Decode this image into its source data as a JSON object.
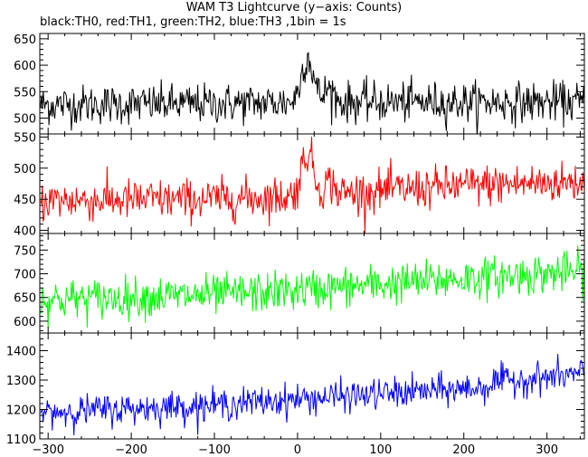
{
  "chart_data": {
    "type": "line",
    "title": "WAM T3 Lightcurve (y−axis: Counts)",
    "subtitle": "black:TH0, red:TH1, green:TH2, blue:TH3 ,1bin = 1s",
    "xlim": [
      -310,
      345
    ],
    "x_ticks": [
      -300,
      -200,
      -100,
      0,
      100,
      200,
      300
    ],
    "x_tick_labels": [
      "−300",
      "−200",
      "−100",
      "0",
      "100",
      "200",
      "300"
    ],
    "bin_seconds": 1,
    "grid": false,
    "panels": [
      {
        "channel": "TH0",
        "color": "#000000",
        "ylim": [
          470,
          660
        ],
        "y_ticks": [
          500,
          550,
          600,
          650
        ],
        "baseline": [
          [
            -310,
            525
          ],
          [
            -100,
            527
          ],
          [
            0,
            530
          ],
          [
            200,
            530
          ],
          [
            345,
            530
          ]
        ],
        "noise": 25,
        "features": [
          {
            "type": "burst",
            "center": 12,
            "amplitude": 85,
            "width": 10
          },
          {
            "type": "burst",
            "center": 38,
            "amplitude": 25,
            "width": 8
          }
        ]
      },
      {
        "channel": "TH1",
        "color": "#ff0000",
        "ylim": [
          395,
          555
        ],
        "y_ticks": [
          400,
          450,
          500,
          550
        ],
        "baseline": [
          [
            -310,
            448
          ],
          [
            -100,
            450
          ],
          [
            0,
            455
          ],
          [
            200,
            472
          ],
          [
            345,
            478
          ]
        ],
        "noise": 22,
        "features": [
          {
            "type": "burst",
            "center": 12,
            "amplitude": 70,
            "width": 10
          },
          {
            "type": "burst",
            "center": 38,
            "amplitude": 20,
            "width": 8
          }
        ]
      },
      {
        "channel": "TH2",
        "color": "#00ff00",
        "ylim": [
          575,
          785
        ],
        "y_ticks": [
          600,
          650,
          700,
          750
        ],
        "baseline": [
          [
            -310,
            645
          ],
          [
            -100,
            655
          ],
          [
            0,
            665
          ],
          [
            200,
            690
          ],
          [
            345,
            705
          ]
        ],
        "noise": 28,
        "features": []
      },
      {
        "channel": "TH3",
        "color": "#0000ff",
        "ylim": [
          1100,
          1460
        ],
        "y_ticks": [
          1100,
          1200,
          1300,
          1400
        ],
        "baseline": [
          [
            -310,
            1190
          ],
          [
            -100,
            1215
          ],
          [
            0,
            1235
          ],
          [
            200,
            1270
          ],
          [
            345,
            1305
          ]
        ],
        "noise": 35,
        "features": [
          {
            "type": "step",
            "start": 232,
            "amplitude": 15
          }
        ]
      }
    ]
  }
}
